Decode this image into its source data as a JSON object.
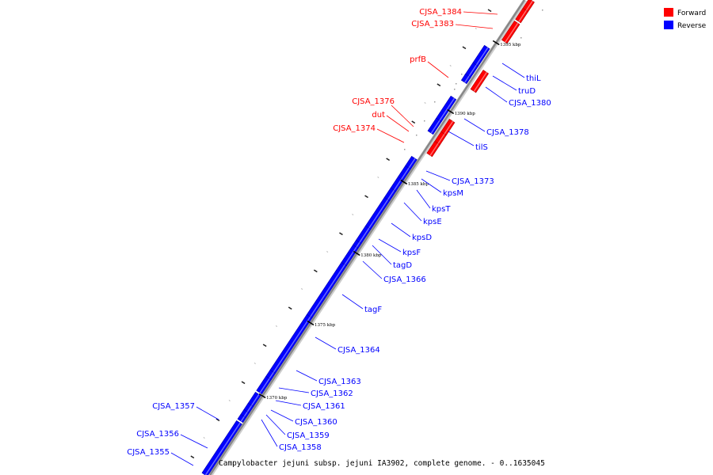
{
  "caption": "Campylobacter jejuni subsp. jejuni IA3902, complete genome. - 0..1635045",
  "legend": [
    {
      "label": "Forward",
      "color": "#ff0000"
    },
    {
      "label": "Reverse",
      "color": "#0000ff"
    }
  ],
  "colors": {
    "forward": "#ff0000",
    "reverse": "#0000ff",
    "line": "#888888"
  },
  "ticks": [
    "1395 kbp",
    "1390 kbp",
    "1385 kbp",
    "1380 kbp",
    "1375 kbp",
    "1370 kbp"
  ],
  "genes": [
    {
      "name": "CJSA_1384",
      "strand": "forward"
    },
    {
      "name": "CJSA_1383",
      "strand": "forward"
    },
    {
      "name": "prfB",
      "strand": "forward"
    },
    {
      "name": "CJSA_1376",
      "strand": "forward"
    },
    {
      "name": "dut",
      "strand": "forward"
    },
    {
      "name": "CJSA_1374",
      "strand": "forward"
    },
    {
      "name": "thiL",
      "strand": "reverse"
    },
    {
      "name": "truD",
      "strand": "reverse"
    },
    {
      "name": "CJSA_1380",
      "strand": "reverse"
    },
    {
      "name": "CJSA_1378",
      "strand": "reverse"
    },
    {
      "name": "tilS",
      "strand": "reverse"
    },
    {
      "name": "CJSA_1373",
      "strand": "reverse"
    },
    {
      "name": "kpsM",
      "strand": "reverse"
    },
    {
      "name": "kpsT",
      "strand": "reverse"
    },
    {
      "name": "kpsE",
      "strand": "reverse"
    },
    {
      "name": "kpsD",
      "strand": "reverse"
    },
    {
      "name": "kpsF",
      "strand": "reverse"
    },
    {
      "name": "tagD",
      "strand": "reverse"
    },
    {
      "name": "CJSA_1366",
      "strand": "reverse"
    },
    {
      "name": "tagF",
      "strand": "reverse"
    },
    {
      "name": "CJSA_1364",
      "strand": "reverse"
    },
    {
      "name": "CJSA_1363",
      "strand": "reverse"
    },
    {
      "name": "CJSA_1362",
      "strand": "reverse"
    },
    {
      "name": "CJSA_1361",
      "strand": "reverse"
    },
    {
      "name": "CJSA_1360",
      "strand": "reverse"
    },
    {
      "name": "CJSA_1359",
      "strand": "reverse"
    },
    {
      "name": "CJSA_1358",
      "strand": "reverse"
    },
    {
      "name": "CJSA_1357",
      "strand": "reverse"
    },
    {
      "name": "CJSA_1356",
      "strand": "reverse"
    },
    {
      "name": "CJSA_1355",
      "strand": "reverse"
    }
  ]
}
